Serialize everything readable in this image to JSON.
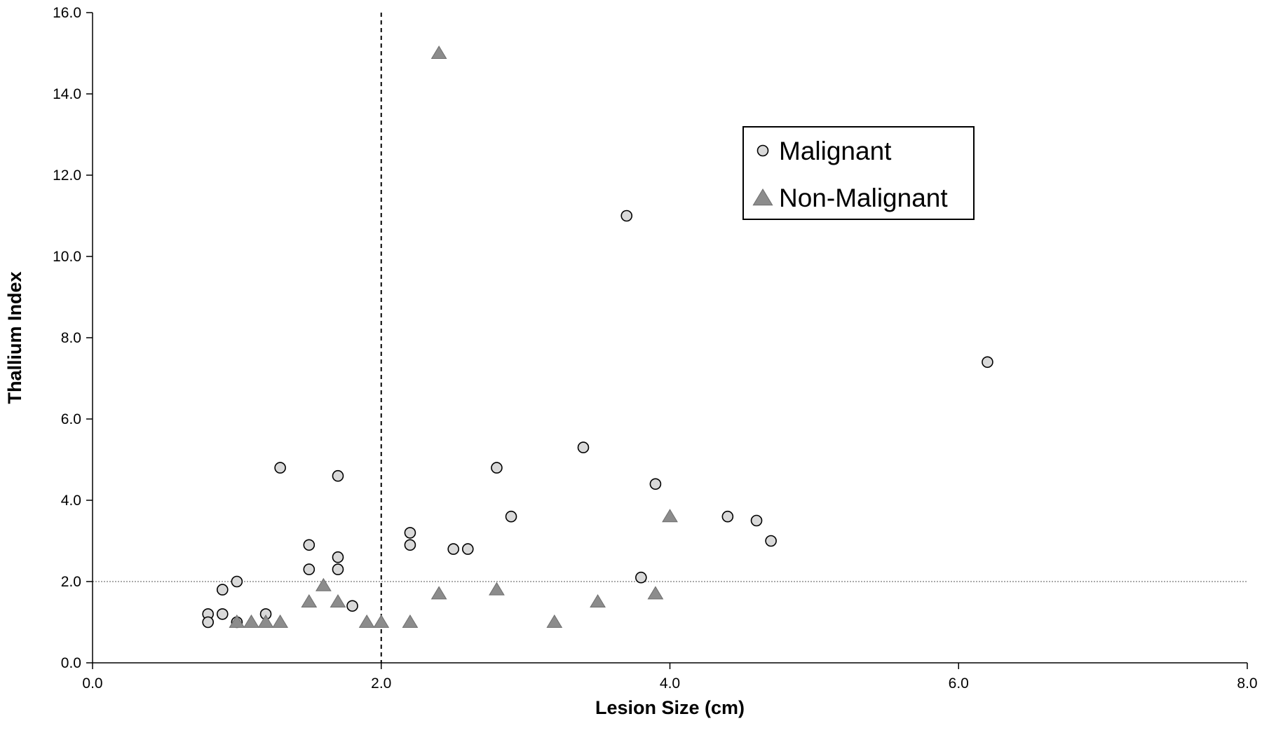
{
  "chart_data": {
    "type": "scatter",
    "title": "",
    "xlabel": "Lesion Size (cm)",
    "ylabel": "Thallium Index",
    "xlim": [
      0,
      8
    ],
    "ylim": [
      0,
      16
    ],
    "xticks": [
      "0.0",
      "2.0",
      "4.0",
      "6.0",
      "8.0"
    ],
    "yticks": [
      "0.0",
      "2.0",
      "4.0",
      "6.0",
      "8.0",
      "10.0",
      "12.0",
      "14.0",
      "16.0"
    ],
    "grid": false,
    "legend_position": "top-right",
    "reference_lines": [
      {
        "orientation": "vertical",
        "x": 2.0,
        "style": "dashed"
      },
      {
        "orientation": "horizontal",
        "y": 2.0,
        "style": "dotted"
      }
    ],
    "series": [
      {
        "name": "Malignant",
        "marker": "circle",
        "color": "#d9d9d9",
        "points": [
          [
            0.8,
            1.2
          ],
          [
            0.8,
            1.0
          ],
          [
            0.9,
            1.8
          ],
          [
            0.9,
            1.2
          ],
          [
            1.0,
            2.0
          ],
          [
            1.0,
            1.0
          ],
          [
            1.2,
            1.2
          ],
          [
            1.3,
            4.8
          ],
          [
            1.5,
            2.9
          ],
          [
            1.5,
            2.3
          ],
          [
            1.7,
            4.6
          ],
          [
            1.7,
            2.6
          ],
          [
            1.7,
            2.3
          ],
          [
            1.8,
            1.4
          ],
          [
            2.2,
            3.2
          ],
          [
            2.2,
            2.9
          ],
          [
            2.5,
            2.8
          ],
          [
            2.6,
            2.8
          ],
          [
            2.8,
            4.8
          ],
          [
            2.9,
            3.6
          ],
          [
            3.4,
            5.3
          ],
          [
            3.7,
            11.0
          ],
          [
            3.8,
            2.1
          ],
          [
            3.9,
            4.4
          ],
          [
            4.4,
            3.6
          ],
          [
            4.6,
            3.5
          ],
          [
            4.7,
            3.0
          ],
          [
            6.2,
            7.4
          ]
        ]
      },
      {
        "name": "Non-Malignant",
        "marker": "triangle",
        "color": "#8c8c8c",
        "points": [
          [
            1.0,
            1.0
          ],
          [
            1.1,
            1.0
          ],
          [
            1.2,
            1.0
          ],
          [
            1.3,
            1.0
          ],
          [
            1.5,
            1.5
          ],
          [
            1.6,
            1.9
          ],
          [
            1.7,
            1.5
          ],
          [
            1.9,
            1.0
          ],
          [
            2.0,
            1.0
          ],
          [
            2.2,
            1.0
          ],
          [
            2.4,
            1.7
          ],
          [
            2.4,
            15.0
          ],
          [
            2.8,
            1.8
          ],
          [
            3.2,
            1.0
          ],
          [
            3.5,
            1.5
          ],
          [
            3.9,
            1.7
          ],
          [
            4.0,
            3.6
          ]
        ]
      }
    ]
  }
}
